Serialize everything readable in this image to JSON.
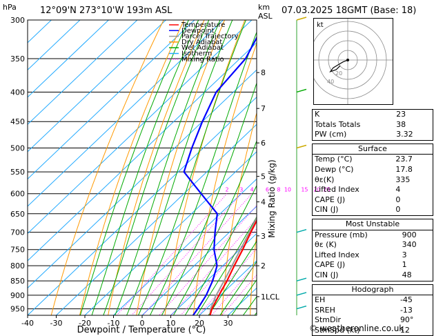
{
  "header": {
    "location": "12°09'N  273°10'W  193m  ASL",
    "datetime": "07.03.2025  18GMT  (Base: 18)",
    "hpa_unit": "hPa",
    "km_unit": "km",
    "asl_unit": "ASL"
  },
  "legend": [
    {
      "label": "Temperature",
      "color": "#ff0000",
      "style": "solid"
    },
    {
      "label": "Dewpoint",
      "color": "#0000ff",
      "style": "solid"
    },
    {
      "label": "Parcel Trajectory",
      "color": "#999999",
      "style": "solid"
    },
    {
      "label": "Dry Adiabat",
      "color": "#ff9900",
      "style": "solid"
    },
    {
      "label": "Wet Adiabat",
      "color": "#00aa00",
      "style": "solid"
    },
    {
      "label": "Isotherm",
      "color": "#22aaff",
      "style": "solid"
    },
    {
      "label": "Mixing Ratio",
      "color": "#ff00ff",
      "style": "dotted"
    }
  ],
  "chart_data": {
    "type": "line",
    "xlabel": "Dewpoint / Temperature (°C)",
    "ylabel": "hPa",
    "secondary_ylabel": "Mixing Ratio (g/kg)",
    "xlim": [
      -40,
      40
    ],
    "ylim": [
      975,
      300
    ],
    "x_ticks": [
      "-40",
      "-30",
      "-20",
      "-10",
      "0",
      "10",
      "20",
      "30"
    ],
    "pressure_ticks": [
      "300",
      "350",
      "400",
      "450",
      "500",
      "550",
      "600",
      "650",
      "700",
      "750",
      "800",
      "850",
      "900",
      "950"
    ],
    "km_ticks": [
      {
        "label": "8",
        "p": 370
      },
      {
        "label": "7",
        "p": 427
      },
      {
        "label": "6",
        "p": 490
      },
      {
        "label": "5",
        "p": 560
      },
      {
        "label": "4",
        "p": 620
      },
      {
        "label": "3",
        "p": 710
      },
      {
        "label": "2",
        "p": 800
      },
      {
        "label": "1LCL",
        "p": 905
      }
    ],
    "mixing_ratio_labels": [
      "2",
      "3",
      "4",
      "6",
      "8",
      "10",
      "15",
      "20",
      "25"
    ],
    "mixing_ratio_values": [
      2,
      3,
      4,
      6,
      8,
      10,
      15,
      20,
      25
    ],
    "series": [
      {
        "name": "Temperature",
        "color": "#ff0000",
        "points": [
          [
            975,
            23.7
          ],
          [
            950,
            22
          ],
          [
            900,
            19.5
          ],
          [
            850,
            17
          ],
          [
            800,
            14
          ],
          [
            750,
            11
          ],
          [
            700,
            7.5
          ],
          [
            650,
            4
          ],
          [
            600,
            1
          ],
          [
            550,
            -3
          ],
          [
            500,
            -7.5
          ],
          [
            450,
            -13.5
          ],
          [
            400,
            -21
          ],
          [
            350,
            -29
          ],
          [
            300,
            -38
          ]
        ]
      },
      {
        "name": "Dewpoint",
        "color": "#0000ff",
        "points": [
          [
            975,
            17.8
          ],
          [
            950,
            17
          ],
          [
            900,
            15
          ],
          [
            850,
            12
          ],
          [
            800,
            8
          ],
          [
            750,
            1
          ],
          [
            700,
            -5
          ],
          [
            650,
            -11
          ],
          [
            600,
            -24
          ],
          [
            550,
            -38
          ],
          [
            500,
            -44
          ],
          [
            450,
            -50
          ],
          [
            400,
            -56
          ],
          [
            350,
            -58
          ],
          [
            300,
            -65
          ]
        ]
      },
      {
        "name": "Parcel Trajectory",
        "color": "#999999",
        "points": [
          [
            975,
            23.7
          ],
          [
            950,
            21.5
          ],
          [
            900,
            18.5
          ],
          [
            850,
            16
          ],
          [
            800,
            13.2
          ],
          [
            750,
            10.2
          ],
          [
            700,
            7
          ],
          [
            650,
            3.5
          ],
          [
            600,
            -0.5
          ],
          [
            550,
            -5
          ],
          [
            500,
            -10
          ],
          [
            450,
            -16
          ],
          [
            400,
            -23
          ],
          [
            350,
            -31
          ],
          [
            300,
            -40
          ]
        ]
      }
    ]
  },
  "hodograph": {
    "label": "kt",
    "ring_labels": [
      "20",
      "40"
    ],
    "trace_kt": [
      [
        0,
        0
      ],
      [
        -5,
        -2
      ],
      [
        -10,
        -5
      ],
      [
        -15,
        -8
      ],
      [
        -18,
        -12
      ],
      [
        -12,
        -10
      ],
      [
        -8,
        -6
      ]
    ]
  },
  "indices": {
    "top": [
      {
        "label": "K",
        "value": "23"
      },
      {
        "label": "Totals Totals",
        "value": "38"
      },
      {
        "label": "PW (cm)",
        "value": "3.32"
      }
    ],
    "surface": {
      "title": "Surface",
      "rows": [
        {
          "label": "Temp (°C)",
          "value": "23.7"
        },
        {
          "label": "Dewp (°C)",
          "value": "17.8"
        },
        {
          "label": "θε(K)",
          "value": "335"
        },
        {
          "label": "Lifted Index",
          "value": "4"
        },
        {
          "label": "CAPE (J)",
          "value": "0"
        },
        {
          "label": "CIN (J)",
          "value": "0"
        }
      ]
    },
    "most_unstable": {
      "title": "Most Unstable",
      "rows": [
        {
          "label": "Pressure (mb)",
          "value": "900"
        },
        {
          "label": "θε (K)",
          "value": "340"
        },
        {
          "label": "Lifted Index",
          "value": "3"
        },
        {
          "label": "CAPE (J)",
          "value": "1"
        },
        {
          "label": "CIN (J)",
          "value": "48"
        }
      ]
    },
    "hodograph_box": {
      "title": "Hodograph",
      "rows": [
        {
          "label": "EH",
          "value": "-45"
        },
        {
          "label": "SREH",
          "value": "-13"
        },
        {
          "label": "StmDir",
          "value": "90°"
        },
        {
          "label": "StmSpd (kt)",
          "value": "12"
        }
      ]
    }
  },
  "footer": "© weatheronline.co.uk"
}
